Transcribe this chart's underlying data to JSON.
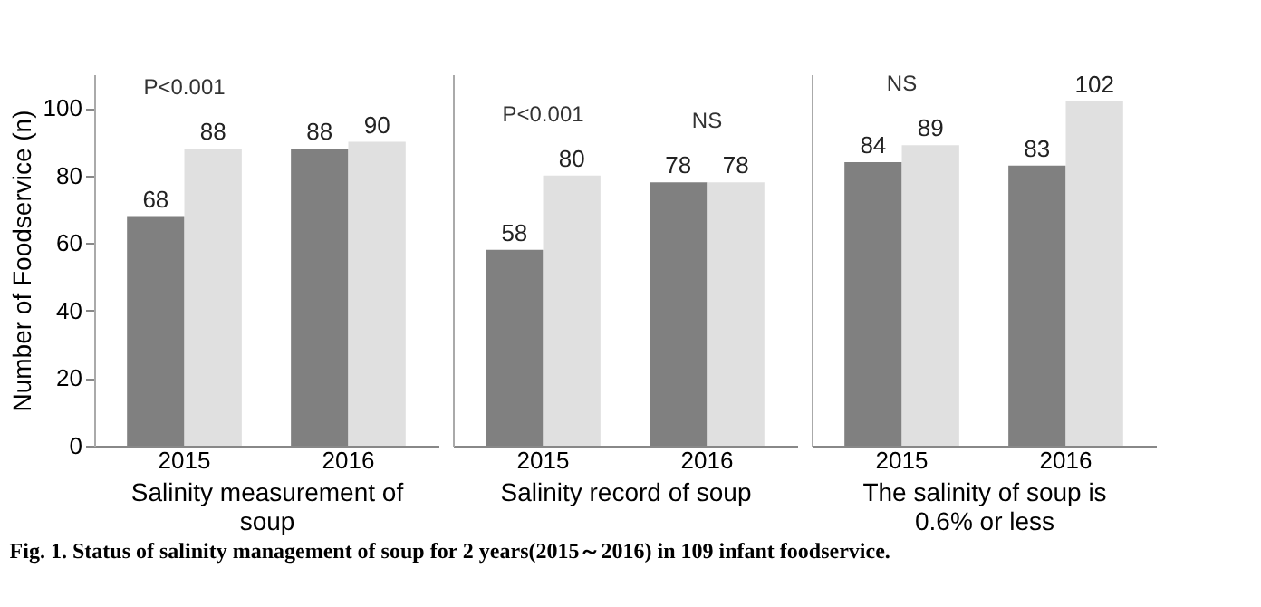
{
  "chart_data": [
    {
      "type": "bar",
      "xlabel": "Salinity measurement of soup",
      "ylabel": "Number  of Foodservice (n)",
      "categories": [
        "2015",
        "2016"
      ],
      "series": [
        {
          "color": "#808080",
          "values": [
            68,
            88
          ]
        },
        {
          "color": "#e0e0e0",
          "values": [
            88,
            90
          ]
        }
      ],
      "ylim": [
        0,
        110
      ],
      "yticks": [
        0,
        20,
        40,
        60,
        80,
        100
      ],
      "data_labels": true,
      "grid": false,
      "legend": false,
      "annotations": [
        {
          "text": "P<0.001",
          "x": "2015",
          "y": 88
        },
        "Fig. 1. Status of salinity management of soup for 2 years(2015～2016) in 109 infant foodservice."
      ]
    },
    {
      "type": "bar",
      "xlabel": "Salinity record of soup",
      "categories": [
        "2015",
        "2016"
      ],
      "series": [
        {
          "color": "#808080",
          "values": [
            58,
            78
          ]
        },
        {
          "color": "#e0e0e0",
          "values": [
            80,
            78
          ]
        }
      ],
      "ylim": [
        0,
        110
      ],
      "tick_labels": "x",
      "data_labels": true,
      "grid": false,
      "legend": false,
      "annotations": [
        {
          "text": "P<0.001",
          "x": "2015",
          "y": 80
        },
        {
          "text": "NS",
          "x": "2016",
          "y": 78
        }
      ]
    },
    {
      "type": "bar",
      "xlabel": "The salinity of soup is 0.6% or less",
      "categories": [
        "2015",
        "2016"
      ],
      "series": [
        {
          "color": "#808080",
          "values": [
            84,
            83
          ]
        },
        {
          "color": "#e0e0e0",
          "values": [
            89,
            102
          ]
        }
      ],
      "ylim": [
        0,
        110
      ],
      "tick_labels": "x",
      "data_labels": true,
      "grid": false,
      "legend": false,
      "annotations": [
        {
          "text": "NS",
          "x": "2015",
          "y": 89
        }
      ]
    }
  ]
}
